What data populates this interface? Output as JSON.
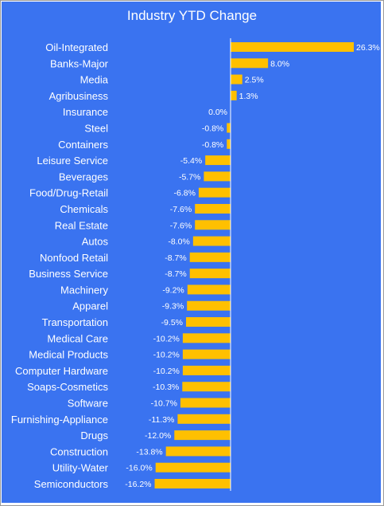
{
  "colors": {
    "background": "#3a73f0",
    "bar": "#ffc000",
    "text": "#ffffff",
    "axis": "#ffffff"
  },
  "chart_data": {
    "type": "bar",
    "orientation": "horizontal",
    "title": "Industry YTD Change",
    "value_format": "percent",
    "categories": [
      "Oil-Integrated",
      "Banks-Major",
      "Media",
      "Agribusiness",
      "Insurance",
      "Steel",
      "Containers",
      "Leisure Service",
      "Beverages",
      "Food/Drug-Retail",
      "Chemicals",
      "Real Estate",
      "Autos",
      "Nonfood Retail",
      "Business Service",
      "Machinery",
      "Apparel",
      "Transportation",
      "Medical Care",
      "Medical Products",
      "Computer Hardware",
      "Soaps-Cosmetics",
      "Software",
      "Furnishing-Appliance",
      "Drugs",
      "Construction",
      "Utility-Water",
      "Semiconductors"
    ],
    "values": [
      26.3,
      8.0,
      2.5,
      1.3,
      0.0,
      -0.8,
      -0.8,
      -5.4,
      -5.7,
      -6.8,
      -7.6,
      -7.6,
      -8.0,
      -8.7,
      -8.7,
      -9.2,
      -9.3,
      -9.5,
      -10.2,
      -10.2,
      -10.2,
      -10.3,
      -10.7,
      -11.3,
      -12.0,
      -13.8,
      -16.0,
      -16.2
    ],
    "data_labels": [
      "26.3%",
      "8.0%",
      "2.5%",
      "1.3%",
      "0.0%",
      "-0.8%",
      "-0.8%",
      "-5.4%",
      "-5.7%",
      "-6.8%",
      "-7.6%",
      "-7.6%",
      "-8.0%",
      "-8.7%",
      "-8.7%",
      "-9.2%",
      "-9.3%",
      "-9.5%",
      "-10.2%",
      "-10.2%",
      "-10.2%",
      "-10.3%",
      "-10.7%",
      "-11.3%",
      "-12.0%",
      "-13.8%",
      "-16.0%",
      "-16.2%"
    ],
    "grid": false,
    "legend": "none"
  }
}
